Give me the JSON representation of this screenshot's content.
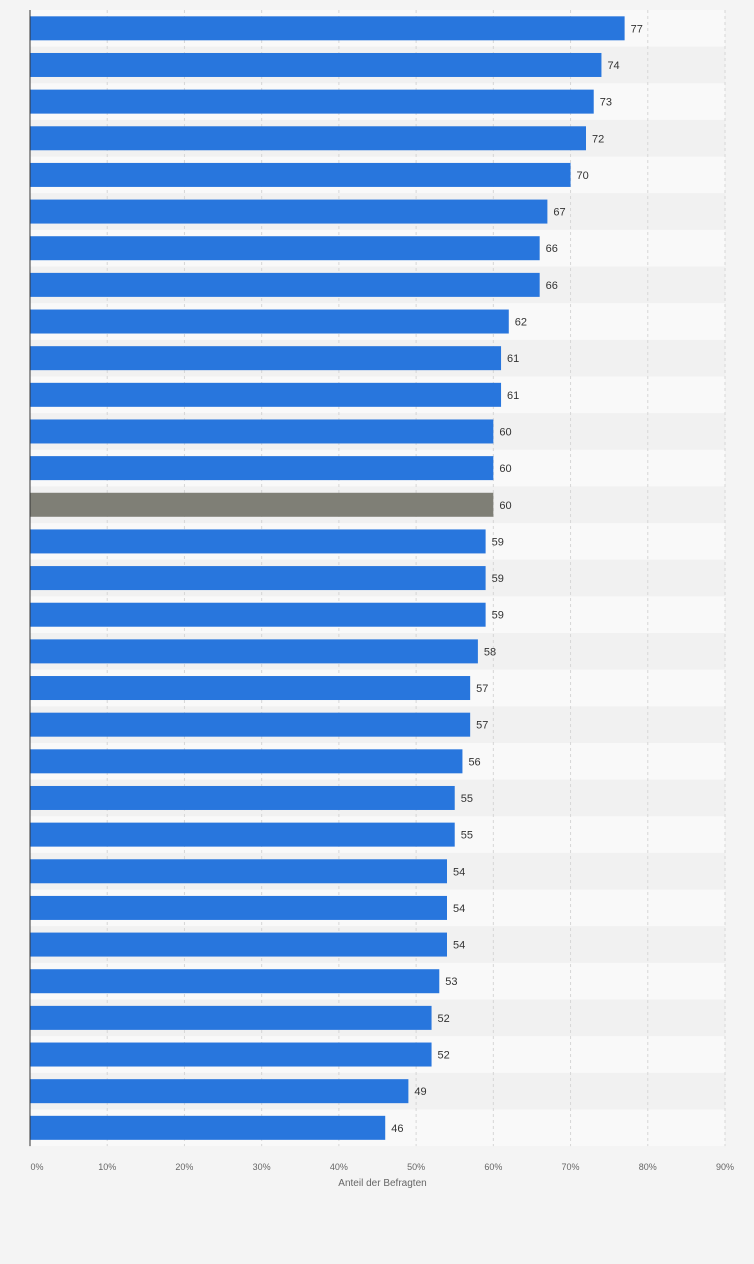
{
  "chart_data": {
    "type": "bar",
    "orientation": "horizontal",
    "values": [
      77,
      74,
      73,
      72,
      70,
      67,
      66,
      66,
      62,
      61,
      61,
      60,
      60,
      60,
      59,
      59,
      59,
      58,
      57,
      57,
      56,
      55,
      55,
      54,
      54,
      54,
      53,
      52,
      52,
      49,
      46
    ],
    "highlight_index": 13,
    "xlabel": "Anteil der Befragten",
    "xlim": [
      0,
      90
    ],
    "x_ticks": [
      "0%",
      "10%",
      "20%",
      "30%",
      "40%",
      "50%",
      "60%",
      "70%",
      "80%",
      "90%"
    ],
    "grid": true,
    "colors": {
      "bar": "#2876dd",
      "highlight": "#7f7f76",
      "band_light": "#f9f9f9",
      "band_dark": "#f1f1f1",
      "grid": "#d6d6d6",
      "axis": "#333333"
    }
  }
}
